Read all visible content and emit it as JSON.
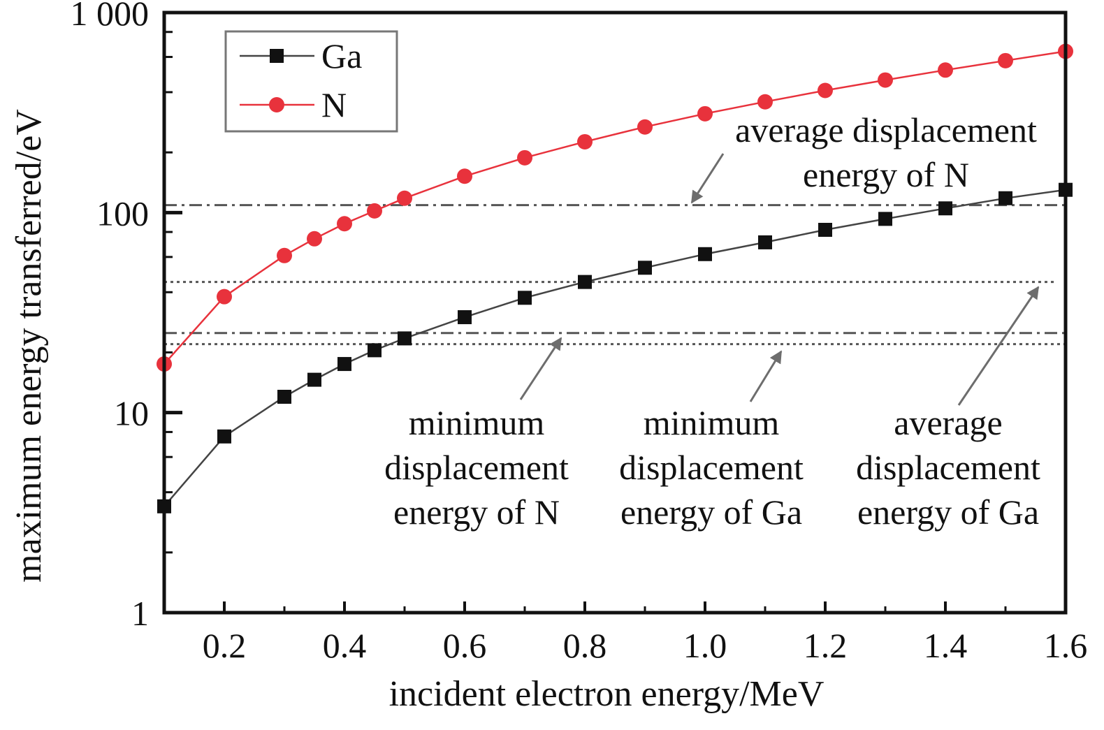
{
  "chart_data": {
    "type": "line",
    "xlabel": "incident electron energy/MeV",
    "ylabel": "maximum energy transferred/eV",
    "x_scale": "linear",
    "y_scale": "log",
    "xlim": [
      0.1,
      1.6
    ],
    "ylim": [
      1,
      1000
    ],
    "x_ticks": [
      {
        "value": 0.2,
        "label": "0.2"
      },
      {
        "value": 0.4,
        "label": "0.4"
      },
      {
        "value": 0.6,
        "label": "0.6"
      },
      {
        "value": 0.8,
        "label": "0.8"
      },
      {
        "value": 1.0,
        "label": "1.0"
      },
      {
        "value": 1.2,
        "label": "1.2"
      },
      {
        "value": 1.4,
        "label": "1.4"
      },
      {
        "value": 1.6,
        "label": "1.6"
      }
    ],
    "y_ticks": [
      {
        "value": 1,
        "label": "1"
      },
      {
        "value": 10,
        "label": "10"
      },
      {
        "value": 100,
        "label": "100"
      },
      {
        "value": 1000,
        "label": "1 000"
      }
    ],
    "grid": false,
    "legend_position": "top-left",
    "series": [
      {
        "name": "Ga",
        "color": "#111111",
        "marker": "square",
        "points": [
          [
            0.1,
            3.4
          ],
          [
            0.2,
            7.6
          ],
          [
            0.3,
            12
          ],
          [
            0.35,
            14.6
          ],
          [
            0.4,
            17.5
          ],
          [
            0.45,
            20.5
          ],
          [
            0.5,
            23.5
          ],
          [
            0.6,
            30
          ],
          [
            0.7,
            37.5
          ],
          [
            0.8,
            45
          ],
          [
            0.9,
            53
          ],
          [
            1.0,
            62
          ],
          [
            1.1,
            71
          ],
          [
            1.2,
            82
          ],
          [
            1.3,
            93
          ],
          [
            1.4,
            105
          ],
          [
            1.5,
            118
          ],
          [
            1.6,
            130
          ]
        ]
      },
      {
        "name": "N",
        "color": "#e8323c",
        "marker": "circle",
        "points": [
          [
            0.1,
            17.5
          ],
          [
            0.2,
            38
          ],
          [
            0.3,
            61
          ],
          [
            0.35,
            74
          ],
          [
            0.4,
            88
          ],
          [
            0.45,
            102
          ],
          [
            0.5,
            118
          ],
          [
            0.6,
            152
          ],
          [
            0.7,
            188
          ],
          [
            0.8,
            226
          ],
          [
            0.9,
            268
          ],
          [
            1.0,
            312
          ],
          [
            1.1,
            358
          ],
          [
            1.2,
            408
          ],
          [
            1.3,
            460
          ],
          [
            1.4,
            516
          ],
          [
            1.5,
            575
          ],
          [
            1.6,
            640
          ]
        ]
      }
    ],
    "reference_lines": [
      {
        "value": 109,
        "style": "dash-dot",
        "label_ref": 0
      },
      {
        "value": 45,
        "style": "dotted",
        "label_ref": 3
      },
      {
        "value": 25,
        "style": "dash-dot",
        "label_ref": 1
      },
      {
        "value": 22,
        "style": "dotted",
        "label_ref": 2
      }
    ],
    "annotations": [
      {
        "lines": [
          "average displacement",
          "energy of N"
        ]
      },
      {
        "lines": [
          "minimum",
          "displacement",
          "energy of N"
        ]
      },
      {
        "lines": [
          "minimum",
          "displacement",
          "energy of Ga"
        ]
      },
      {
        "lines": [
          "average",
          "displacement",
          "energy of Ga"
        ]
      }
    ]
  }
}
